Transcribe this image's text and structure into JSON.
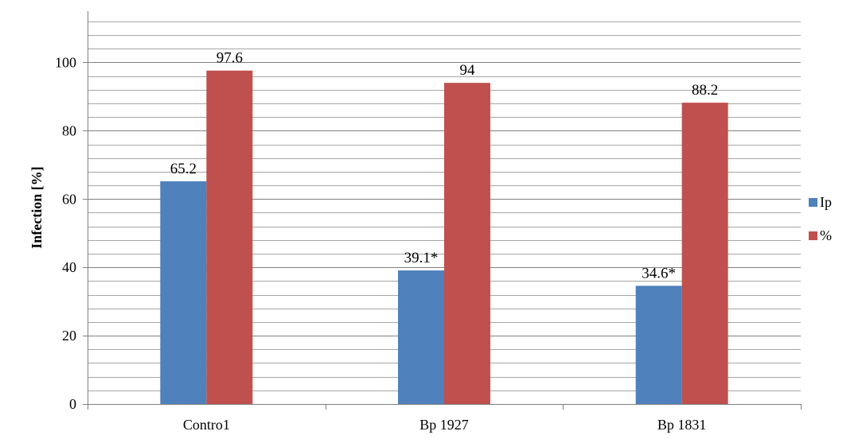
{
  "chart_data": {
    "type": "bar",
    "categories": [
      "Contro1",
      "Bp 1927",
      "Bp 1831"
    ],
    "series": [
      {
        "name": "Ip",
        "values": [
          65.2,
          39.1,
          34.6
        ],
        "labels": [
          "65.2",
          "39.1*",
          "34.6*"
        ],
        "color": "#4f81bd"
      },
      {
        "name": "%",
        "values": [
          97.6,
          94,
          88.2
        ],
        "labels": [
          "97.6",
          "94",
          "88.2"
        ],
        "color": "#c0504d"
      }
    ],
    "ylabel": "Infection [%]",
    "xlabel": "",
    "ylim": [
      0,
      115
    ],
    "yticks": [
      0,
      20,
      40,
      60,
      80,
      100
    ],
    "minor_grid_step": 4,
    "grid": true,
    "legend_position": "right"
  }
}
